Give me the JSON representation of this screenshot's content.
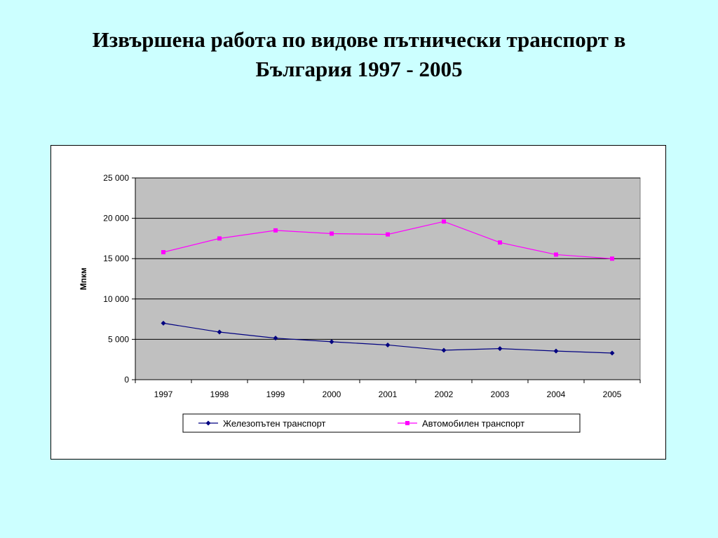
{
  "slide": {
    "title_line1": "Извършена работа по видове пътнически транспорт в",
    "title_line2": "България 1997 - 2005"
  },
  "chart_data": {
    "type": "line",
    "title": "",
    "xlabel": "",
    "ylabel": "Мпкм",
    "categories": [
      "1997",
      "1998",
      "1999",
      "2000",
      "2001",
      "2002",
      "2003",
      "2004",
      "2005"
    ],
    "ylim": [
      0,
      25000
    ],
    "yticks": [
      0,
      5000,
      10000,
      15000,
      20000,
      25000
    ],
    "ytick_labels": [
      "0",
      "5 000",
      "10 000",
      "15 000",
      "20 000",
      "25 000"
    ],
    "grid": true,
    "plot_background": "#c0c0c0",
    "legend_position": "bottom",
    "series": [
      {
        "name": "Железопътен транспорт",
        "color": "#000080",
        "marker": "diamond",
        "values": [
          7000,
          5900,
          5150,
          4700,
          4300,
          3650,
          3850,
          3550,
          3300
        ]
      },
      {
        "name": "Автомобилен транспорт",
        "color": "#ff00ff",
        "marker": "square",
        "values": [
          15800,
          17500,
          18500,
          18100,
          18000,
          19600,
          17000,
          15500,
          15000
        ]
      }
    ]
  }
}
